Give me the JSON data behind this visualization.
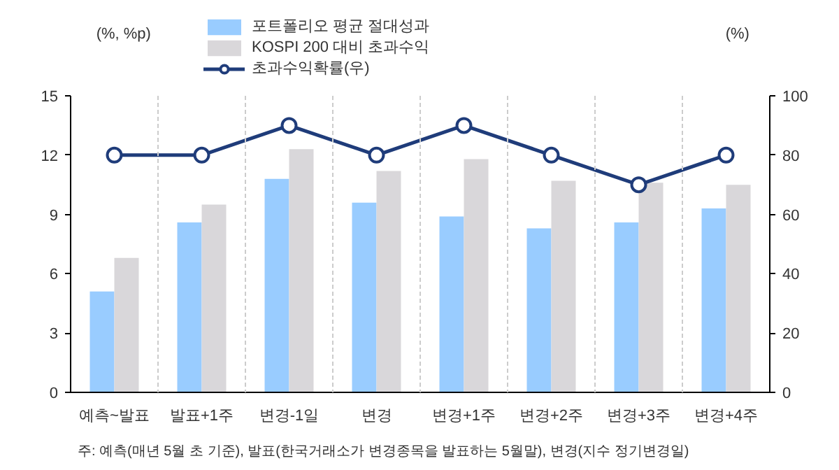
{
  "chart_data": {
    "type": "bar",
    "categories": [
      "예측~발표",
      "발표+1주",
      "변경-1일",
      "변경",
      "변경+1주",
      "변경+2주",
      "변경+3주",
      "변경+4주"
    ],
    "series": [
      {
        "name": "포트폴리오 평균 절대성과",
        "color": "#99ccff",
        "values": [
          5.1,
          8.6,
          10.8,
          9.6,
          8.9,
          8.3,
          8.6,
          9.3
        ]
      },
      {
        "name": "KOSPI 200 대비 초과수익",
        "color": "#d9d7da",
        "values": [
          6.8,
          9.5,
          12.3,
          11.2,
          11.8,
          10.7,
          10.6,
          10.5
        ]
      },
      {
        "name": "초과수익확률(우)",
        "type": "line",
        "axis": "y2",
        "color": "#1f3c7a",
        "marker": "circle",
        "values": [
          80,
          80,
          90,
          80,
          90,
          80,
          70,
          80
        ]
      }
    ],
    "ylabel": "(%, %p)",
    "y2label": "(%)",
    "ylim": [
      0,
      15
    ],
    "yticks": [
      0,
      3,
      6,
      9,
      12,
      15
    ],
    "y2lim": [
      0,
      100
    ],
    "y2ticks": [
      0,
      20,
      40,
      60,
      80,
      100
    ],
    "grid": "x",
    "legend": "top",
    "annotations": [
      "주: 예측(매년 5월 초 기준), 발표(한국거래소가 변경종목을 발표하는 5월말), 변경(지수 정기변경일)"
    ]
  }
}
